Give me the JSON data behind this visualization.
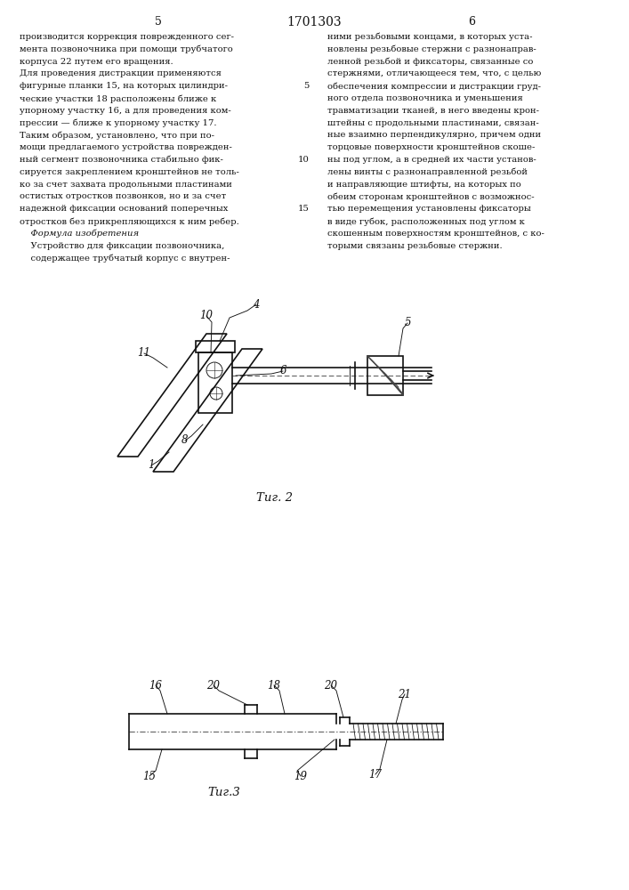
{
  "title": "1701303",
  "page_left": "5",
  "page_right": "6",
  "fig2_caption": "Τиг. 2",
  "fig3_caption": "Τиг.3",
  "left_col_lines": [
    "производится коррекция поврежденного сег-",
    "мента позвоночника при помощи трубчатого",
    "корпуса 22 путем его вращения.",
    "Для проведения дистракции применяются",
    "фигурные планки 15, на которых цилиндри-",
    "ческие участки 18 расположены ближе к",
    "упорному участку 16, а для проведения ком-",
    "прессии — ближе к упорному участку 17.",
    "Таким образом, установлено, что при по-",
    "мощи предлагаемого устройства поврежден-",
    "ный сегмент позвоночника стабильно фик-",
    "сируется закреплением кронштейнов не толь-",
    "ко за счет захвата продольными пластинами",
    "остистых отростков позвонков, но и за счет",
    "надежной фиксации оснований поперечных",
    "отростков без прикрепляющихся к ним ребер.",
    "    Формула изобретения",
    "    Устройство для фиксации позвоночника,",
    "    содержащее трубчатый корпус с внутрен-"
  ],
  "left_col_italic": [
    false,
    false,
    false,
    false,
    false,
    false,
    false,
    false,
    false,
    false,
    false,
    false,
    false,
    false,
    false,
    false,
    true,
    false,
    false
  ],
  "left_col_linenum": [
    "",
    "",
    "",
    "",
    "5",
    "",
    "",
    "",
    "",
    "",
    "10",
    "",
    "",
    "",
    "15",
    "",
    "",
    "",
    ""
  ],
  "right_col_lines": [
    "ними резьбовыми концами, в которых уста-",
    "новлены резьбовые стержни с разнонаправ-",
    "ленной резьбой и фиксаторы, связанные со",
    "стержнями, отличающееся тем, что, с целью",
    "обеспечения компрессии и дистракции груд-",
    "ного отдела позвоночника и уменьшения",
    "травматизации тканей, в него введены крон-",
    "штейны с продольными пластинами, связан-",
    "ные взаимно перпендикулярно, причем одни",
    "торцовые поверхности кронштейнов скоше-",
    "ны под углом, а в средней их части установ-",
    "лены винты с разнонаправленной резьбой",
    "и направляющие штифты, на которых по",
    "обеим сторонам кронштейнов с возможнос-",
    "тью перемещения установлены фиксаторы",
    "в виде губок, расположенных под углом к",
    "скошенным поверхностям кронштейнов, с ко-",
    "торыми связаны резьбовые стержни."
  ]
}
